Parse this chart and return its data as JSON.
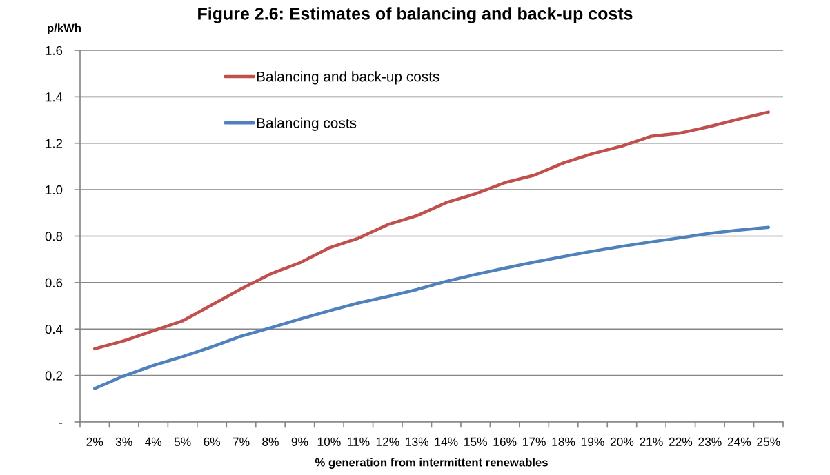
{
  "chart_data": {
    "type": "line",
    "title": "Figure 2.6: Estimates of balancing and back-up costs",
    "xlabel": "% generation from intermittent renewables",
    "ylabel": "p/kWh",
    "categories": [
      "2%",
      "3%",
      "4%",
      "5%",
      "6%",
      "7%",
      "8%",
      "9%",
      "10%",
      "11%",
      "12%",
      "13%",
      "14%",
      "15%",
      "16%",
      "17%",
      "18%",
      "19%",
      "20%",
      "21%",
      "22%",
      "23%",
      "24%",
      "25%"
    ],
    "series": [
      {
        "name": "Balancing and back-up costs",
        "color": "#c0504d",
        "values": [
          0.315,
          0.349,
          0.392,
          0.435,
          0.504,
          0.573,
          0.637,
          0.685,
          0.749,
          0.791,
          0.849,
          0.888,
          0.944,
          0.982,
          1.03,
          1.062,
          1.115,
          1.155,
          1.188,
          1.23,
          1.244,
          1.272,
          1.304,
          1.334
        ]
      },
      {
        "name": "Balancing costs",
        "color": "#4f81bd",
        "values": [
          0.144,
          0.198,
          0.243,
          0.281,
          0.323,
          0.369,
          0.405,
          0.443,
          0.478,
          0.512,
          0.54,
          0.57,
          0.605,
          0.635,
          0.662,
          0.688,
          0.712,
          0.735,
          0.756,
          0.775,
          0.793,
          0.812,
          0.826,
          0.838
        ]
      }
    ],
    "ylim": [
      0,
      1.6
    ],
    "yticks": [
      {
        "value": 0,
        "label": "-"
      },
      0.2,
      0.4,
      0.6,
      0.8,
      {
        "value": 1,
        "label": "1.0"
      },
      1.2,
      1.4,
      1.6
    ],
    "grid": "y",
    "legend": "top left",
    "line_style": "solid"
  }
}
